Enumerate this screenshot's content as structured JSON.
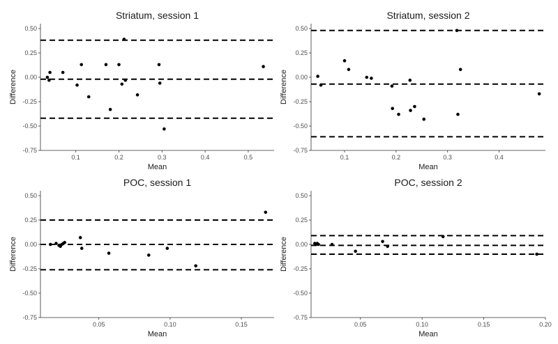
{
  "chart_data": [
    {
      "type": "scatter",
      "title": "Striatum, session 1",
      "xlabel": "Mean",
      "ylabel": "Difference",
      "xlim": [
        0.018,
        0.56
      ],
      "ylim": [
        -0.75,
        0.55
      ],
      "xticks": [
        0.1,
        0.2,
        0.3,
        0.4,
        0.5
      ],
      "xtick_labels": [
        "0.1",
        "0.2",
        "0.3",
        "0.4",
        "0.5"
      ],
      "yticks": [
        -0.75,
        -0.5,
        -0.25,
        0,
        0.25,
        0.5
      ],
      "ytick_labels": [
        "-0.75",
        "-0.50",
        "-0.25",
        "0.00",
        "0.25",
        "0.50"
      ],
      "hlines": [
        0.38,
        -0.02,
        -0.42
      ],
      "grid": false,
      "points": [
        {
          "x": 0.034,
          "y": 0.0
        },
        {
          "x": 0.038,
          "y": -0.03
        },
        {
          "x": 0.04,
          "y": 0.05
        },
        {
          "x": 0.07,
          "y": 0.05
        },
        {
          "x": 0.103,
          "y": -0.08
        },
        {
          "x": 0.113,
          "y": 0.13
        },
        {
          "x": 0.13,
          "y": -0.2
        },
        {
          "x": 0.17,
          "y": 0.13
        },
        {
          "x": 0.18,
          "y": -0.33
        },
        {
          "x": 0.2,
          "y": 0.13
        },
        {
          "x": 0.207,
          "y": -0.07
        },
        {
          "x": 0.212,
          "y": 0.39
        },
        {
          "x": 0.215,
          "y": -0.03
        },
        {
          "x": 0.243,
          "y": -0.18
        },
        {
          "x": 0.293,
          "y": 0.13
        },
        {
          "x": 0.295,
          "y": -0.06
        },
        {
          "x": 0.305,
          "y": -0.53
        },
        {
          "x": 0.535,
          "y": 0.11
        }
      ]
    },
    {
      "type": "scatter",
      "title": "Striatum, session 2",
      "xlabel": "Mean",
      "ylabel": "Difference",
      "xlim": [
        0.035,
        0.49
      ],
      "ylim": [
        -0.75,
        0.55
      ],
      "xticks": [
        0.1,
        0.2,
        0.3,
        0.4
      ],
      "xtick_labels": [
        "0.1",
        "0.2",
        "0.3",
        "0.4"
      ],
      "yticks": [
        -0.75,
        -0.5,
        -0.25,
        0,
        0.25,
        0.5
      ],
      "ytick_labels": [
        "-0.75",
        "-0.50",
        "-0.25",
        "0.00",
        "0.25",
        "0.50"
      ],
      "hlines": [
        0.48,
        -0.07,
        -0.61
      ],
      "grid": false,
      "points": [
        {
          "x": 0.048,
          "y": 0.01
        },
        {
          "x": 0.054,
          "y": -0.08
        },
        {
          "x": 0.1,
          "y": 0.17
        },
        {
          "x": 0.108,
          "y": 0.08
        },
        {
          "x": 0.143,
          "y": 0.0
        },
        {
          "x": 0.152,
          "y": -0.01
        },
        {
          "x": 0.192,
          "y": -0.09
        },
        {
          "x": 0.193,
          "y": -0.32
        },
        {
          "x": 0.205,
          "y": -0.38
        },
        {
          "x": 0.227,
          "y": -0.03
        },
        {
          "x": 0.228,
          "y": -0.34
        },
        {
          "x": 0.236,
          "y": -0.3
        },
        {
          "x": 0.254,
          "y": -0.43
        },
        {
          "x": 0.318,
          "y": 0.48
        },
        {
          "x": 0.32,
          "y": -0.38
        },
        {
          "x": 0.325,
          "y": 0.08
        },
        {
          "x": 0.478,
          "y": -0.17
        }
      ]
    },
    {
      "type": "scatter",
      "title": "POC, session 1",
      "xlabel": "Mean",
      "ylabel": "Difference",
      "xlim": [
        0.009,
        0.173
      ],
      "ylim": [
        -0.75,
        0.55
      ],
      "xticks": [
        0.05,
        0.1,
        0.15
      ],
      "xtick_labels": [
        "0.05",
        "0.10",
        "0.15"
      ],
      "yticks": [
        -0.75,
        -0.5,
        -0.25,
        0,
        0.25,
        0.5
      ],
      "ytick_labels": [
        "-0.75",
        "-0.50",
        "-0.25",
        "0.00",
        "0.25",
        "0.50"
      ],
      "hlines": [
        0.25,
        0.0,
        -0.26
      ],
      "grid": false,
      "points": [
        {
          "x": 0.016,
          "y": 0.0
        },
        {
          "x": 0.02,
          "y": 0.01
        },
        {
          "x": 0.022,
          "y": -0.01
        },
        {
          "x": 0.023,
          "y": -0.02
        },
        {
          "x": 0.024,
          "y": 0.0
        },
        {
          "x": 0.025,
          "y": 0.01
        },
        {
          "x": 0.026,
          "y": 0.02
        },
        {
          "x": 0.037,
          "y": 0.07
        },
        {
          "x": 0.038,
          "y": -0.04
        },
        {
          "x": 0.057,
          "y": -0.09
        },
        {
          "x": 0.085,
          "y": -0.11
        },
        {
          "x": 0.098,
          "y": -0.04
        },
        {
          "x": 0.118,
          "y": -0.22
        },
        {
          "x": 0.167,
          "y": 0.33
        }
      ]
    },
    {
      "type": "scatter",
      "title": "POC, session 2",
      "xlabel": "Mean",
      "ylabel": "Difference",
      "xlim": [
        0.01,
        0.2
      ],
      "ylim": [
        -0.75,
        0.55
      ],
      "xticks": [
        0.05,
        0.1,
        0.15,
        0.2
      ],
      "xtick_labels": [
        "0.05",
        "0.10",
        "0.15",
        "0.20"
      ],
      "yticks": [
        -0.75,
        -0.5,
        -0.25,
        0,
        0.25,
        0.5
      ],
      "ytick_labels": [
        "-0.75",
        "-0.50",
        "-0.25",
        "0.00",
        "0.25",
        "0.50"
      ],
      "hlines": [
        0.09,
        -0.01,
        -0.1
      ],
      "grid": false,
      "points": [
        {
          "x": 0.013,
          "y": 0.01
        },
        {
          "x": 0.014,
          "y": 0.0
        },
        {
          "x": 0.015,
          "y": 0.01
        },
        {
          "x": 0.016,
          "y": 0.0
        },
        {
          "x": 0.027,
          "y": 0.0
        },
        {
          "x": 0.046,
          "y": -0.07
        },
        {
          "x": 0.068,
          "y": 0.03
        },
        {
          "x": 0.072,
          "y": -0.02
        },
        {
          "x": 0.117,
          "y": 0.08
        },
        {
          "x": 0.193,
          "y": -0.1
        }
      ]
    }
  ]
}
